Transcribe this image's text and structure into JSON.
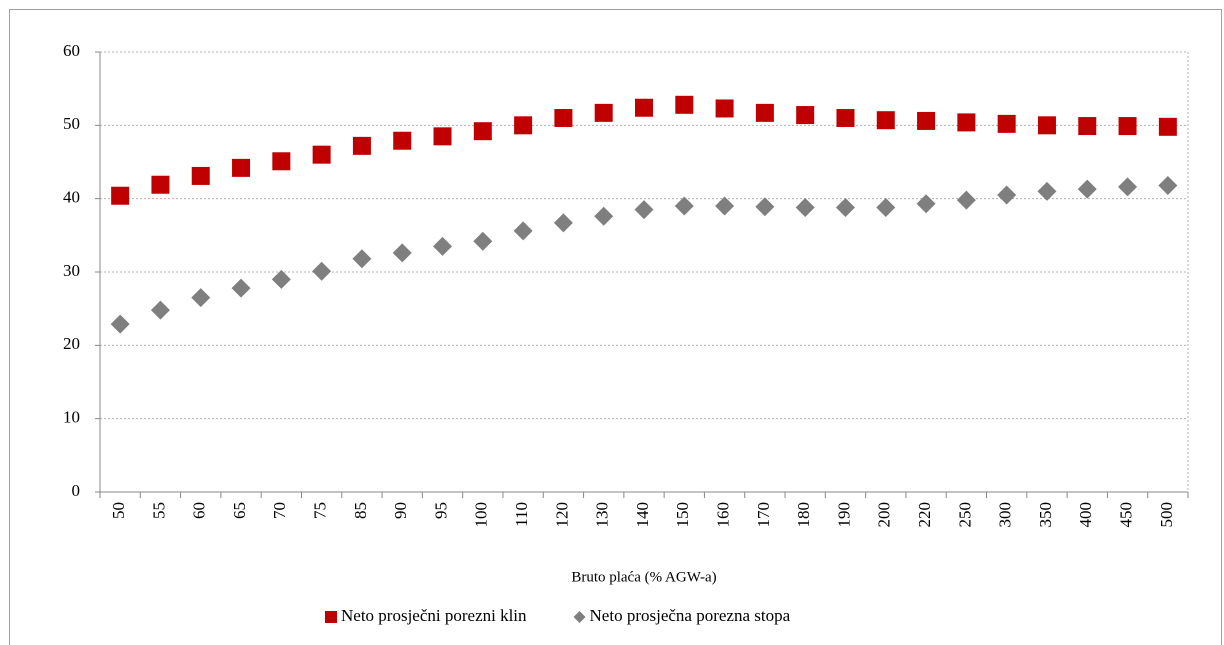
{
  "chart_data": {
    "type": "scatter",
    "x_label": "Bruto plaća (% AGW-a)",
    "categories": [
      "50",
      "55",
      "60",
      "65",
      "70",
      "75",
      "85",
      "90",
      "95",
      "100",
      "110",
      "120",
      "130",
      "140",
      "150",
      "160",
      "170",
      "180",
      "190",
      "200",
      "220",
      "250",
      "300",
      "350",
      "400",
      "450",
      "500"
    ],
    "series": [
      {
        "name": "Neto prosječni porezni klin",
        "color": "#c00000",
        "marker": "square",
        "values": [
          40.4,
          41.9,
          43.1,
          44.2,
          45.1,
          46.0,
          47.2,
          47.9,
          48.5,
          49.2,
          50.0,
          51.0,
          51.7,
          52.4,
          52.8,
          52.3,
          51.7,
          51.4,
          51.0,
          50.7,
          50.6,
          50.4,
          50.2,
          50.0,
          49.9,
          49.9,
          49.8
        ]
      },
      {
        "name": "Neto prosječna porezna stopa",
        "color": "#7f7f7f",
        "marker": "diamond",
        "values": [
          22.9,
          24.8,
          26.5,
          27.8,
          29.0,
          30.1,
          31.8,
          32.6,
          33.5,
          34.2,
          35.6,
          36.7,
          37.6,
          38.5,
          39.0,
          39.0,
          38.9,
          38.8,
          38.8,
          38.8,
          39.3,
          39.8,
          40.5,
          41.0,
          41.3,
          41.6,
          41.8
        ]
      }
    ],
    "ylim": [
      0,
      60
    ],
    "yticks": [
      0,
      10,
      20,
      30,
      40,
      50,
      60
    ],
    "grid": true,
    "legend": "bottom"
  }
}
